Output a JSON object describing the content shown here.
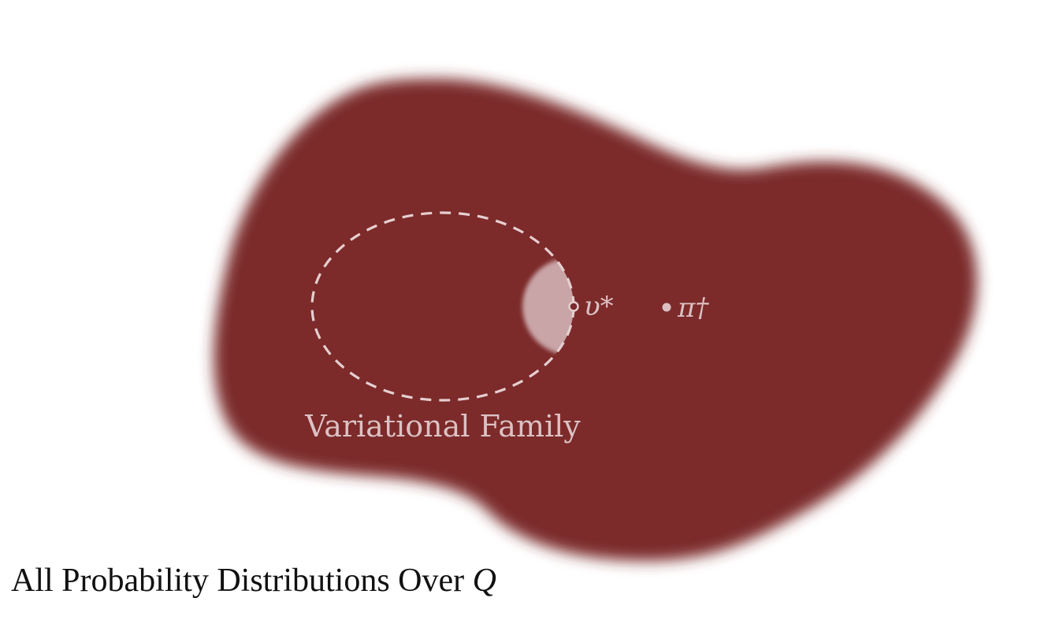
{
  "diagram": {
    "outer_set": {
      "label": "All Probability Distributions Over",
      "label_symbol": "Q",
      "fill_color": "#7b292c"
    },
    "variational_family": {
      "label": "Variational Family",
      "boundary_style": "dashed",
      "stroke_color": "#e6cfd0"
    },
    "points": [
      {
        "id": "v-star",
        "label": "υ*",
        "marker": "hollow-circle"
      },
      {
        "id": "pi-dagger",
        "label": "π†",
        "marker": "filled-circle"
      }
    ],
    "highlight": {
      "color": "#c9a5a7",
      "description_label": ""
    },
    "text_color_on_fill": "#dcc1c3",
    "caption_color": "#111111"
  }
}
